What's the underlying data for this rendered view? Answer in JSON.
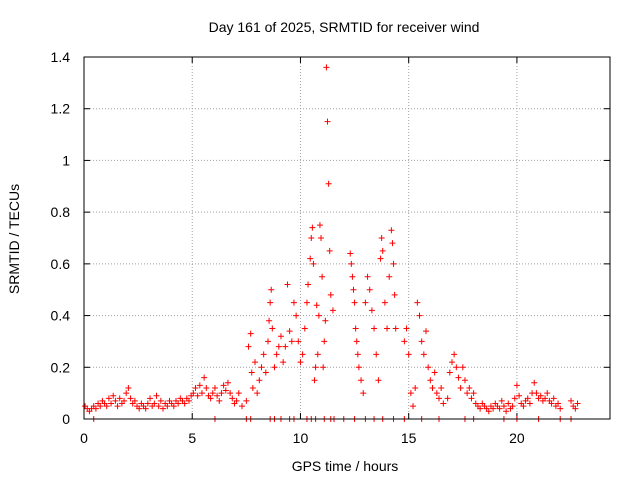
{
  "chart_data": {
    "type": "scatter",
    "title": "Day 161 of 2025, SRMTID for receiver wind",
    "xlabel": "GPS time / hours",
    "ylabel": "SRMTID / TECUs",
    "xlim": [
      0,
      24.3
    ],
    "ylim": [
      0,
      1.4
    ],
    "xticks": [
      0,
      5,
      10,
      15,
      20
    ],
    "xtick_labels": [
      "0",
      "5",
      "10",
      "15",
      "20"
    ],
    "yticks": [
      0,
      0.2,
      0.4,
      0.6,
      0.8,
      1.0,
      1.2,
      1.4
    ],
    "ytick_labels": [
      "0",
      "0.2",
      "0.4",
      "0.6",
      "0.8",
      "1",
      "1.2",
      "1.4"
    ],
    "grid": true,
    "marker": "+",
    "series_color": "#ff0000",
    "series": [
      {
        "name": "SRMTID",
        "points": [
          [
            0.05,
            0.05
          ],
          [
            0.15,
            0.04
          ],
          [
            0.25,
            0.03
          ],
          [
            0.35,
            0.04
          ],
          [
            0.45,
            0.05
          ],
          [
            0.55,
            0.04
          ],
          [
            0.65,
            0.06
          ],
          [
            0.75,
            0.05
          ],
          [
            0.85,
            0.07
          ],
          [
            0.95,
            0.06
          ],
          [
            1.05,
            0.05
          ],
          [
            1.15,
            0.08
          ],
          [
            1.25,
            0.06
          ],
          [
            1.35,
            0.09
          ],
          [
            1.45,
            0.07
          ],
          [
            1.55,
            0.05
          ],
          [
            1.65,
            0.08
          ],
          [
            1.75,
            0.06
          ],
          [
            1.85,
            0.07
          ],
          [
            1.95,
            0.1
          ],
          [
            2.05,
            0.12
          ],
          [
            2.15,
            0.08
          ],
          [
            2.25,
            0.06
          ],
          [
            2.35,
            0.07
          ],
          [
            2.45,
            0.05
          ],
          [
            2.55,
            0.04
          ],
          [
            2.65,
            0.06
          ],
          [
            2.75,
            0.05
          ],
          [
            2.85,
            0.04
          ],
          [
            2.95,
            0.06
          ],
          [
            3.05,
            0.08
          ],
          [
            3.15,
            0.05
          ],
          [
            3.25,
            0.06
          ],
          [
            3.35,
            0.09
          ],
          [
            3.45,
            0.05
          ],
          [
            3.55,
            0.07
          ],
          [
            3.65,
            0.04
          ],
          [
            3.75,
            0.06
          ],
          [
            3.85,
            0.05
          ],
          [
            3.95,
            0.07
          ],
          [
            4.05,
            0.06
          ],
          [
            4.15,
            0.05
          ],
          [
            4.25,
            0.07
          ],
          [
            4.35,
            0.06
          ],
          [
            4.45,
            0.08
          ],
          [
            4.55,
            0.07
          ],
          [
            4.65,
            0.06
          ],
          [
            4.75,
            0.08
          ],
          [
            4.85,
            0.07
          ],
          [
            4.95,
            0.09
          ],
          [
            5.05,
            0.1
          ],
          [
            5.15,
            0.12
          ],
          [
            5.25,
            0.09
          ],
          [
            5.35,
            0.13
          ],
          [
            5.45,
            0.1
          ],
          [
            5.55,
            0.16
          ],
          [
            5.65,
            0.12
          ],
          [
            5.75,
            0.09
          ],
          [
            5.85,
            0.08
          ],
          [
            5.95,
            0.1
          ],
          [
            6.05,
            0.12
          ],
          [
            6.15,
            0.09
          ],
          [
            6.25,
            0.07
          ],
          [
            6.35,
            0.1
          ],
          [
            6.45,
            0.13
          ],
          [
            6.55,
            0.11
          ],
          [
            6.65,
            0.14
          ],
          [
            6.75,
            0.1
          ],
          [
            6.85,
            0.08
          ],
          [
            6.95,
            0.06
          ],
          [
            7.05,
            0.07
          ],
          [
            7.15,
            0.1
          ],
          [
            7.3,
            0.05
          ],
          [
            7.5,
            0.07
          ],
          [
            7.6,
            0.28
          ],
          [
            7.7,
            0.33
          ],
          [
            7.75,
            0.18
          ],
          [
            7.8,
            0.12
          ],
          [
            7.9,
            0.22
          ],
          [
            8.0,
            0.1
          ],
          [
            8.1,
            0.15
          ],
          [
            8.2,
            0.2
          ],
          [
            8.3,
            0.25
          ],
          [
            8.4,
            0.18
          ],
          [
            8.5,
            0.3
          ],
          [
            8.55,
            0.38
          ],
          [
            8.6,
            0.45
          ],
          [
            8.65,
            0.5
          ],
          [
            8.7,
            0.35
          ],
          [
            8.8,
            0.2
          ],
          [
            8.9,
            0.25
          ],
          [
            9.0,
            0.28
          ],
          [
            9.1,
            0.32
          ],
          [
            9.2,
            0.22
          ],
          [
            9.3,
            0.28
          ],
          [
            9.4,
            0.52
          ],
          [
            9.5,
            0.34
          ],
          [
            9.6,
            0.3
          ],
          [
            9.7,
            0.45
          ],
          [
            9.8,
            0.4
          ],
          [
            9.9,
            0.3
          ],
          [
            10.0,
            0.22
          ],
          [
            10.1,
            0.25
          ],
          [
            10.2,
            0.35
          ],
          [
            10.3,
            0.45
          ],
          [
            10.35,
            0.52
          ],
          [
            10.45,
            0.62
          ],
          [
            10.5,
            0.7
          ],
          [
            10.55,
            0.74
          ],
          [
            10.6,
            0.6
          ],
          [
            10.65,
            0.15
          ],
          [
            10.7,
            0.2
          ],
          [
            10.75,
            0.44
          ],
          [
            10.8,
            0.25
          ],
          [
            10.85,
            0.4
          ],
          [
            10.9,
            0.75
          ],
          [
            10.95,
            0.7
          ],
          [
            11.0,
            0.55
          ],
          [
            11.05,
            0.2
          ],
          [
            11.1,
            0.3
          ],
          [
            11.15,
            0.38
          ],
          [
            11.2,
            1.36
          ],
          [
            11.25,
            1.15
          ],
          [
            11.3,
            0.91
          ],
          [
            11.35,
            0.65
          ],
          [
            11.4,
            0.48
          ],
          [
            11.5,
            0.42
          ],
          [
            12.3,
            0.64
          ],
          [
            12.35,
            0.6
          ],
          [
            12.4,
            0.55
          ],
          [
            12.45,
            0.5
          ],
          [
            12.5,
            0.45
          ],
          [
            12.55,
            0.35
          ],
          [
            12.6,
            0.3
          ],
          [
            12.65,
            0.25
          ],
          [
            12.7,
            0.2
          ],
          [
            12.8,
            0.15
          ],
          [
            12.9,
            0.1
          ],
          [
            13.0,
            0.45
          ],
          [
            13.1,
            0.55
          ],
          [
            13.2,
            0.5
          ],
          [
            13.3,
            0.42
          ],
          [
            13.4,
            0.35
          ],
          [
            13.5,
            0.25
          ],
          [
            13.6,
            0.15
          ],
          [
            13.7,
            0.62
          ],
          [
            13.75,
            0.7
          ],
          [
            13.8,
            0.65
          ],
          [
            13.9,
            0.45
          ],
          [
            14.0,
            0.35
          ],
          [
            14.1,
            0.55
          ],
          [
            14.2,
            0.73
          ],
          [
            14.25,
            0.68
          ],
          [
            14.3,
            0.6
          ],
          [
            14.35,
            0.48
          ],
          [
            14.4,
            0.35
          ],
          [
            14.8,
            0.3
          ],
          [
            14.9,
            0.35
          ],
          [
            15.0,
            0.25
          ],
          [
            15.1,
            0.1
          ],
          [
            15.2,
            0.05
          ],
          [
            15.3,
            0.12
          ],
          [
            15.4,
            0.45
          ],
          [
            15.5,
            0.4
          ],
          [
            15.6,
            0.3
          ],
          [
            15.7,
            0.25
          ],
          [
            15.8,
            0.34
          ],
          [
            15.9,
            0.2
          ],
          [
            16.0,
            0.15
          ],
          [
            16.1,
            0.12
          ],
          [
            16.2,
            0.18
          ],
          [
            16.3,
            0.1
          ],
          [
            16.4,
            0.08
          ],
          [
            16.5,
            0.12
          ],
          [
            16.6,
            0.06
          ],
          [
            16.8,
            0.08
          ],
          [
            16.9,
            0.18
          ],
          [
            17.0,
            0.22
          ],
          [
            17.1,
            0.25
          ],
          [
            17.2,
            0.2
          ],
          [
            17.3,
            0.16
          ],
          [
            17.4,
            0.12
          ],
          [
            17.5,
            0.2
          ],
          [
            17.6,
            0.15
          ],
          [
            17.7,
            0.1
          ],
          [
            17.8,
            0.12
          ],
          [
            17.9,
            0.08
          ],
          [
            18.0,
            0.1
          ],
          [
            18.1,
            0.06
          ],
          [
            18.2,
            0.05
          ],
          [
            18.3,
            0.04
          ],
          [
            18.4,
            0.06
          ],
          [
            18.5,
            0.05
          ],
          [
            18.6,
            0.04
          ],
          [
            18.7,
            0.03
          ],
          [
            18.8,
            0.05
          ],
          [
            18.9,
            0.04
          ],
          [
            19.0,
            0.06
          ],
          [
            19.1,
            0.05
          ],
          [
            19.2,
            0.04
          ],
          [
            19.3,
            0.07
          ],
          [
            19.4,
            0.05
          ],
          [
            19.5,
            0.03
          ],
          [
            19.6,
            0.06
          ],
          [
            19.7,
            0.04
          ],
          [
            19.8,
            0.05
          ],
          [
            19.9,
            0.08
          ],
          [
            20.0,
            0.13
          ],
          [
            20.1,
            0.09
          ],
          [
            20.2,
            0.06
          ],
          [
            20.3,
            0.05
          ],
          [
            20.4,
            0.07
          ],
          [
            20.5,
            0.08
          ],
          [
            20.6,
            0.06
          ],
          [
            20.7,
            0.1
          ],
          [
            20.8,
            0.14
          ],
          [
            20.9,
            0.1
          ],
          [
            21.0,
            0.08
          ],
          [
            21.1,
            0.09
          ],
          [
            21.2,
            0.07
          ],
          [
            21.3,
            0.08
          ],
          [
            21.4,
            0.1
          ],
          [
            21.5,
            0.07
          ],
          [
            21.6,
            0.06
          ],
          [
            21.7,
            0.08
          ],
          [
            21.8,
            0.05
          ],
          [
            21.9,
            0.06
          ],
          [
            22.0,
            0.04
          ],
          [
            22.5,
            0.07
          ],
          [
            22.6,
            0.05
          ],
          [
            22.7,
            0.04
          ],
          [
            22.8,
            0.06
          ],
          [
            0.45,
            0.0
          ],
          [
            6.05,
            0.0
          ],
          [
            7.5,
            0.0
          ],
          [
            7.7,
            0.0
          ],
          [
            8.6,
            0.0
          ],
          [
            8.8,
            0.0
          ],
          [
            9.1,
            0.0
          ],
          [
            9.5,
            0.0
          ],
          [
            9.7,
            0.0
          ],
          [
            10.3,
            0.0
          ],
          [
            10.5,
            0.0
          ],
          [
            10.7,
            0.0
          ],
          [
            11.1,
            0.0
          ],
          [
            11.4,
            0.0
          ],
          [
            11.55,
            0.0
          ],
          [
            12.0,
            0.0
          ],
          [
            12.5,
            0.0
          ],
          [
            13.0,
            0.0
          ],
          [
            13.4,
            0.0
          ],
          [
            13.8,
            0.0
          ],
          [
            14.3,
            0.0
          ],
          [
            14.8,
            0.0
          ],
          [
            15.6,
            0.0
          ],
          [
            16.4,
            0.0
          ],
          [
            17.6,
            0.0
          ],
          [
            18.0,
            0.0
          ],
          [
            19.4,
            0.0
          ],
          [
            20.0,
            0.0
          ],
          [
            21.0,
            0.0
          ],
          [
            22.0,
            0.0
          ],
          [
            22.5,
            0.0
          ]
        ]
      }
    ]
  }
}
